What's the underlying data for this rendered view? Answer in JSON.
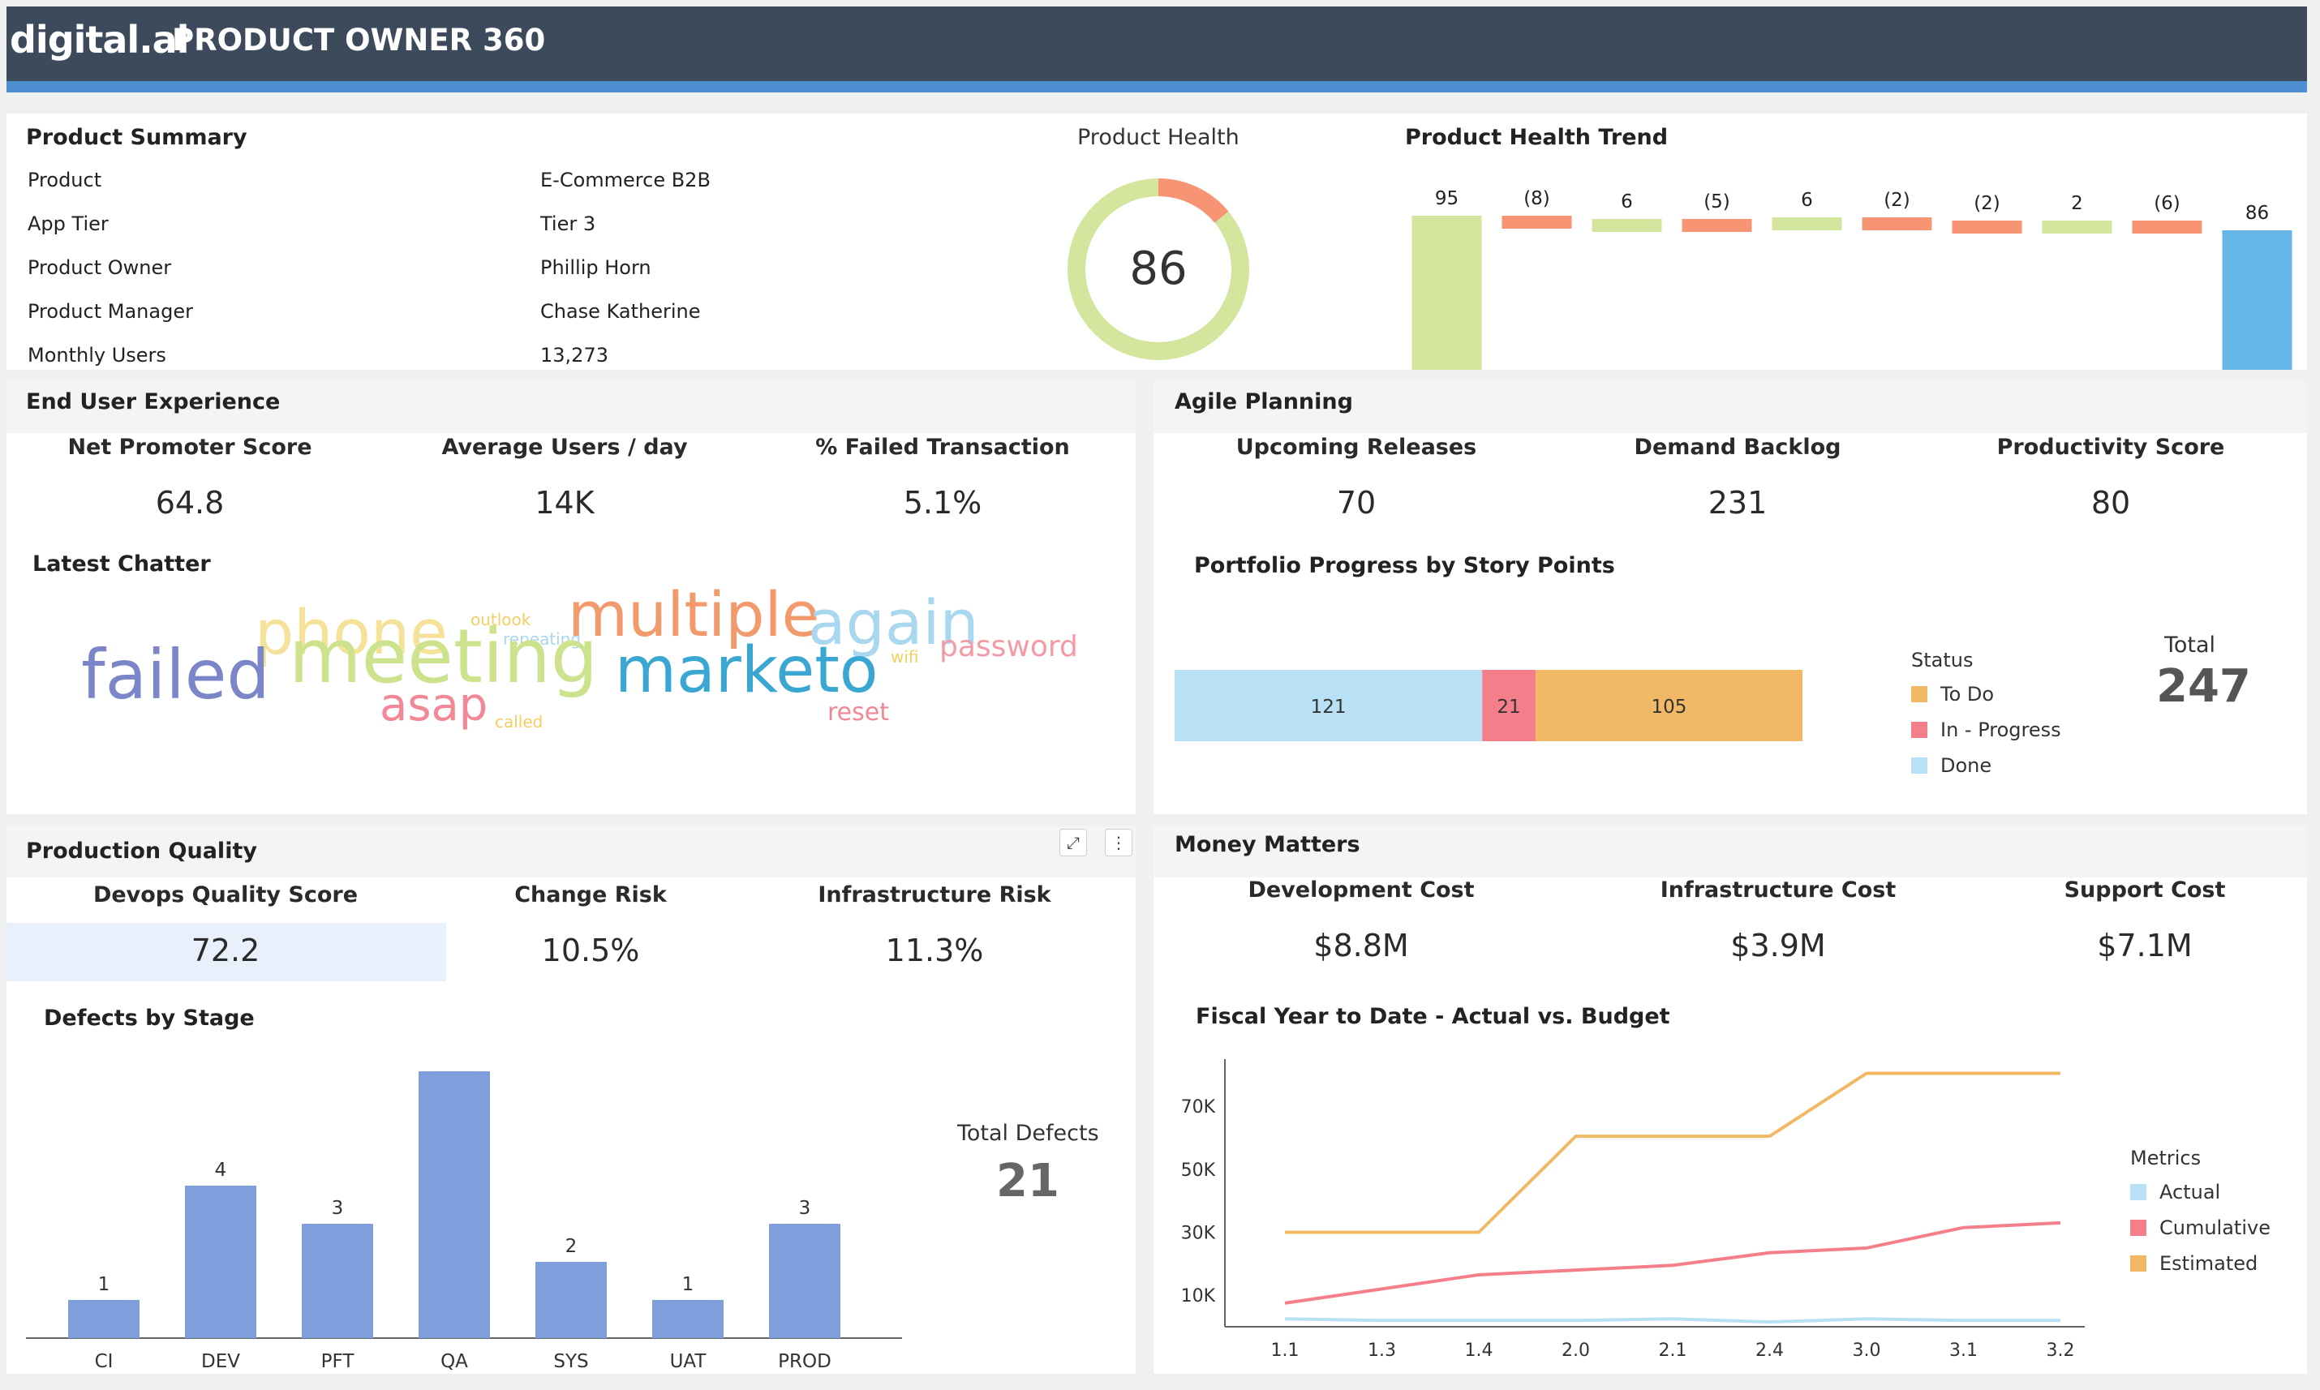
{
  "header": {
    "logo_text": "digital.ai",
    "title": "PRODUCT OWNER 360"
  },
  "product_summary": {
    "title": "Product Summary",
    "rows": [
      {
        "label": "Product",
        "value": "E-Commerce B2B"
      },
      {
        "label": "App Tier",
        "value": "Tier 3"
      },
      {
        "label": "Product Owner",
        "value": "Phillip Horn"
      },
      {
        "label": "Product Manager",
        "value": "Chase Katherine"
      },
      {
        "label": "Monthly Users",
        "value": "13,273"
      }
    ]
  },
  "product_health": {
    "title": "Product Health",
    "value": "86",
    "fraction": 0.86,
    "colors": {
      "good": "#d4e59e",
      "bad": "#f79473"
    }
  },
  "health_trend": {
    "title": "Product Health Trend",
    "chart_data": {
      "type": "bar",
      "subtype": "waterfall",
      "labels": [
        "95",
        "(8)",
        "6",
        "(5)",
        "6",
        "(2)",
        "(2)",
        "2",
        "(6)",
        "86"
      ],
      "values": [
        95,
        -8,
        6,
        -5,
        6,
        -2,
        -2,
        2,
        -6,
        86
      ],
      "kinds": [
        "total",
        "delta",
        "delta",
        "delta",
        "delta",
        "delta",
        "delta",
        "delta",
        "delta",
        "total"
      ],
      "colors": {
        "start": "#d4e59e",
        "increase": "#d4e59e",
        "decrease": "#f79473",
        "end": "#66b5e8"
      }
    }
  },
  "end_user_experience": {
    "title": "End User Experience",
    "kpis": [
      {
        "label": "Net Promoter Score",
        "value": "64.8"
      },
      {
        "label": "Average Users / day",
        "value": "14K"
      },
      {
        "label": "% Failed Transaction",
        "value": "5.1%"
      }
    ],
    "chatter_title": "Latest Chatter",
    "words": [
      {
        "text": "phone",
        "color": "#f6e199"
      },
      {
        "text": "outlook",
        "color": "#f3cf64"
      },
      {
        "text": "repeating",
        "color": "#a9d7f0"
      },
      {
        "text": "multiple",
        "color": "#f39a6c"
      },
      {
        "text": "again",
        "color": "#a9d7f0"
      },
      {
        "text": "failed",
        "color": "#7b86c9"
      },
      {
        "text": "meeting",
        "color": "#cde28d"
      },
      {
        "text": "marketo",
        "color": "#3aa7d3"
      },
      {
        "text": "wifi",
        "color": "#f3cf64"
      },
      {
        "text": "password",
        "color": "#f59aa5"
      },
      {
        "text": "asap",
        "color": "#f28895"
      },
      {
        "text": "called",
        "color": "#f3cf64"
      },
      {
        "text": "reset",
        "color": "#f28895"
      }
    ]
  },
  "agile_planning": {
    "title": "Agile Planning",
    "kpis": [
      {
        "label": "Upcoming Releases",
        "value": "70"
      },
      {
        "label": "Demand Backlog",
        "value": "231"
      },
      {
        "label": "Productivity Score",
        "value": "80"
      }
    ],
    "portfolio": {
      "title": "Portfolio Progress by Story Points",
      "chart_data": {
        "type": "bar",
        "subtype": "stacked-horizontal",
        "segments": [
          {
            "name": "Done",
            "value": 121,
            "color": "#b9e1f6"
          },
          {
            "name": "In - Progress",
            "value": 21,
            "color": "#f47f8a"
          },
          {
            "name": "To Do",
            "value": 105,
            "color": "#f1b965"
          }
        ]
      },
      "legend_title": "Status",
      "legend": [
        {
          "name": "To Do",
          "color": "#f1b965"
        },
        {
          "name": "In - Progress",
          "color": "#f47f8a"
        },
        {
          "name": "Done",
          "color": "#b9e1f6"
        }
      ],
      "total_label": "Total",
      "total_value": "247"
    }
  },
  "production_quality": {
    "title": "Production Quality",
    "kpis": [
      {
        "label": "Devops Quality Score",
        "value": "72.2"
      },
      {
        "label": "Change Risk",
        "value": "10.5%"
      },
      {
        "label": "Infrastructure Risk",
        "value": "11.3%"
      }
    ],
    "defects": {
      "title": "Defects by Stage",
      "chart_data": {
        "type": "bar",
        "categories": [
          "CI",
          "DEV",
          "PFT",
          "QA",
          "SYS",
          "UAT",
          "PROD"
        ],
        "values": [
          1,
          4,
          3,
          7,
          2,
          1,
          3
        ],
        "data_labels": [
          "1",
          "4",
          "3",
          "",
          "2",
          "1",
          "3"
        ],
        "color": "#7f9fdc"
      },
      "total_label": "Total Defects",
      "total_value": "21"
    }
  },
  "money_matters": {
    "title": "Money Matters",
    "kpis": [
      {
        "label": "Development Cost",
        "value": "$8.8M"
      },
      {
        "label": "Infrastructure Cost",
        "value": "$3.9M"
      },
      {
        "label": "Support Cost",
        "value": "$7.1M"
      }
    ],
    "fytd": {
      "title": "Fiscal Year to Date - Actual vs. Budget",
      "chart_data": {
        "type": "line",
        "x": [
          "1.1",
          "1.3",
          "1.4",
          "2.0",
          "2.1",
          "2.4",
          "3.0",
          "3.1",
          "3.2"
        ],
        "ylim": [
          0,
          85000
        ],
        "yticks": [
          10000,
          30000,
          50000,
          70000
        ],
        "ytick_labels": [
          "10K",
          "30K",
          "50K",
          "70K"
        ],
        "series": [
          {
            "name": "Actual",
            "color": "#b9e1f6",
            "values": [
              2500,
              2000,
              2000,
              2000,
              2500,
              1500,
              2500,
              2000,
              2000
            ]
          },
          {
            "name": "Cumulative",
            "color": "#f47f8a",
            "values": [
              7500,
              12000,
              16500,
              18000,
              19500,
              23500,
              25000,
              31500,
              33000
            ]
          },
          {
            "name": "Estimated",
            "color": "#f1b965",
            "values": [
              30000,
              30000,
              30000,
              60500,
              60500,
              60500,
              80500,
              80500,
              80500
            ]
          }
        ]
      },
      "legend_title": "Metrics"
    }
  }
}
